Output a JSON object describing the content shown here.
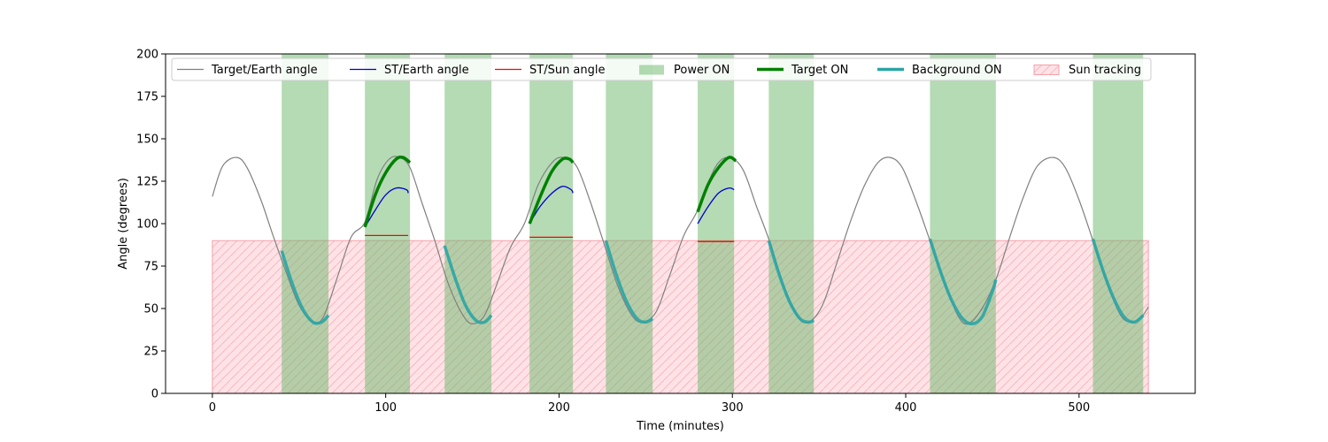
{
  "chart_data": {
    "type": "line",
    "xlabel": "Time (minutes)",
    "ylabel": "Angle (degrees)",
    "xlim": [
      -27,
      567
    ],
    "ylim": [
      0,
      200
    ],
    "x_ticks": [
      0,
      100,
      200,
      300,
      400,
      500
    ],
    "y_ticks": [
      0,
      25,
      50,
      75,
      100,
      125,
      150,
      175,
      200
    ],
    "grid": false,
    "legend_position": "top",
    "colors": {
      "target_earth": "#808080",
      "st_earth": "#0000cc",
      "st_sun": "#ff0000",
      "power_on": "#6ab86a",
      "target_on": "#008000",
      "background_on": "#2aa5a5",
      "sun_tracking": "#ffb6c1"
    },
    "legend": [
      {
        "key": "target_earth",
        "label": "Target/Earth angle",
        "kind": "line"
      },
      {
        "key": "st_earth",
        "label": "ST/Earth angle",
        "kind": "line"
      },
      {
        "key": "st_sun",
        "label": "ST/Sun angle",
        "kind": "line"
      },
      {
        "key": "power_on",
        "label": "Power ON",
        "kind": "patch"
      },
      {
        "key": "target_on",
        "label": "Target ON",
        "kind": "thickline"
      },
      {
        "key": "background_on",
        "label": "Background ON",
        "kind": "thickline"
      },
      {
        "key": "sun_tracking",
        "label": "Sun tracking",
        "kind": "hatch"
      }
    ],
    "target_earth_angle": {
      "x": [
        0,
        6,
        14,
        20,
        28,
        35,
        42,
        50,
        58,
        64,
        72,
        80,
        88,
        95,
        102,
        108,
        114,
        121,
        128,
        136,
        144,
        150,
        157,
        164,
        172,
        180,
        188,
        196,
        202,
        210,
        218,
        226,
        234,
        242,
        248,
        256,
        264,
        272,
        280,
        290,
        298,
        306,
        314,
        322,
        330,
        338,
        344,
        352,
        360,
        368,
        376,
        384,
        391,
        398,
        406,
        414,
        422,
        430,
        436,
        444,
        452,
        460,
        468,
        476,
        485,
        492,
        500,
        508,
        516,
        524,
        530,
        536,
        540
      ],
      "y": [
        116,
        134,
        139,
        133,
        114,
        93,
        73,
        52,
        42,
        45,
        68,
        92,
        101,
        126,
        138,
        139,
        133,
        112,
        91,
        65,
        47,
        41,
        46,
        64,
        86,
        100,
        123,
        136,
        139,
        134,
        113,
        88,
        63,
        46,
        42,
        48,
        70,
        93,
        108,
        133,
        139,
        132,
        110,
        88,
        62,
        45,
        42,
        52,
        76,
        101,
        122,
        136,
        139,
        133,
        113,
        90,
        66,
        46,
        41,
        50,
        67,
        92,
        116,
        134,
        139,
        133,
        114,
        90,
        65,
        46,
        42,
        45,
        51
      ]
    },
    "st_earth_angle": [
      {
        "x": [
          88,
          94,
          100,
          106,
          112,
          113
        ],
        "y": [
          98,
          108,
          117,
          121,
          120,
          118
        ]
      },
      {
        "x": [
          183,
          189,
          196,
          202,
          207,
          208
        ],
        "y": [
          100,
          110,
          118,
          122,
          120,
          118
        ]
      },
      {
        "x": [
          280,
          286,
          292,
          298,
          301
        ],
        "y": [
          100,
          110,
          118,
          121,
          120
        ]
      }
    ],
    "st_sun_angle": [
      {
        "x": [
          88,
          113
        ],
        "y": [
          93,
          93
        ]
      },
      {
        "x": [
          183,
          208
        ],
        "y": [
          92,
          92
        ]
      },
      {
        "x": [
          280,
          301
        ],
        "y": [
          89.5,
          89.5
        ]
      }
    ],
    "power_on": [
      [
        40,
        67
      ],
      [
        88,
        114
      ],
      [
        134,
        161
      ],
      [
        183,
        208
      ],
      [
        227,
        254
      ],
      [
        280,
        301
      ],
      [
        321,
        347
      ],
      [
        414,
        452
      ],
      [
        508,
        537
      ]
    ],
    "target_on": [
      {
        "x": [
          88,
          94,
          100,
          106,
          110,
          114
        ],
        "y": [
          98,
          117,
          130,
          138,
          139,
          136
        ]
      },
      {
        "x": [
          183,
          190,
          196,
          202,
          206,
          208
        ],
        "y": [
          100,
          118,
          131,
          138,
          138,
          136
        ]
      },
      {
        "x": [
          280,
          286,
          292,
          298,
          302
        ],
        "y": [
          107,
          123,
          133,
          139,
          137
        ]
      }
    ],
    "background_on": [
      {
        "x": [
          40,
          46,
          52,
          58,
          63,
          67
        ],
        "y": [
          84,
          65,
          50,
          42,
          42,
          46
        ]
      },
      {
        "x": [
          134,
          140,
          146,
          152,
          157,
          161
        ],
        "y": [
          87,
          68,
          52,
          43,
          42,
          46
        ]
      },
      {
        "x": [
          227,
          233,
          239,
          245,
          250,
          254
        ],
        "y": [
          90,
          70,
          54,
          44,
          42,
          44
        ]
      },
      {
        "x": [
          321,
          327,
          333,
          339,
          344,
          347
        ],
        "y": [
          90,
          70,
          54,
          44,
          42,
          43
        ]
      },
      {
        "x": [
          414,
          420,
          426,
          432,
          438,
          444,
          450,
          452
        ],
        "y": [
          91,
          72,
          56,
          45,
          41,
          45,
          60,
          67
        ]
      },
      {
        "x": [
          508,
          514,
          520,
          526,
          532,
          537
        ],
        "y": [
          91,
          72,
          56,
          45,
          42,
          46
        ]
      }
    ],
    "sun_tracking": {
      "x": [
        0,
        540
      ],
      "y": [
        0,
        90
      ]
    }
  }
}
